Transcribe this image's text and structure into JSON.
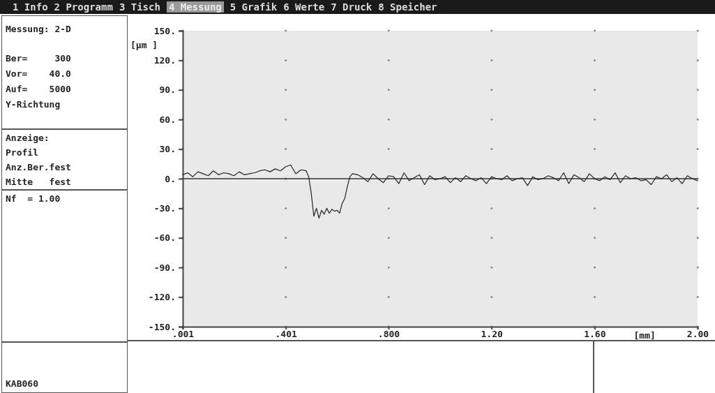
{
  "chart_data": {
    "type": "line",
    "xlabel": "[mm]",
    "ylabel": "[µm ]",
    "series": [
      {
        "color": "#222222",
        "x": [
          0.001,
          0.02,
          0.04,
          0.06,
          0.08,
          0.1,
          0.12,
          0.14,
          0.16,
          0.18,
          0.2,
          0.22,
          0.24,
          0.26,
          0.28,
          0.3,
          0.32,
          0.34,
          0.36,
          0.38,
          0.4,
          0.42,
          0.44,
          0.46,
          0.48,
          0.49,
          0.5,
          0.51,
          0.52,
          0.53,
          0.54,
          0.55,
          0.56,
          0.57,
          0.58,
          0.59,
          0.6,
          0.61,
          0.62,
          0.63,
          0.64,
          0.65,
          0.66,
          0.68,
          0.7,
          0.72,
          0.74,
          0.76,
          0.78,
          0.8,
          0.82,
          0.84,
          0.86,
          0.88,
          0.9,
          0.92,
          0.94,
          0.96,
          0.98,
          1.0,
          1.02,
          1.04,
          1.06,
          1.08,
          1.1,
          1.12,
          1.14,
          1.16,
          1.18,
          1.2,
          1.22,
          1.24,
          1.26,
          1.28,
          1.3,
          1.32,
          1.34,
          1.36,
          1.38,
          1.4,
          1.42,
          1.44,
          1.46,
          1.48,
          1.5,
          1.52,
          1.54,
          1.56,
          1.58,
          1.6,
          1.62,
          1.64,
          1.66,
          1.68,
          1.7,
          1.72,
          1.74,
          1.76,
          1.78,
          1.8,
          1.82,
          1.84,
          1.86,
          1.88,
          1.9,
          1.92,
          1.94,
          1.96,
          1.98,
          2.0
        ],
        "values": [
          4,
          6,
          2,
          7,
          5,
          3,
          8,
          4,
          6,
          5,
          3,
          7,
          4,
          5,
          6,
          8,
          9,
          7,
          10,
          8,
          12,
          14,
          5,
          9,
          8,
          2,
          -15,
          -38,
          -30,
          -40,
          -32,
          -36,
          -30,
          -35,
          -31,
          -33,
          -32,
          -35,
          -25,
          -20,
          -8,
          2,
          5,
          4,
          1,
          -3,
          5,
          0,
          -4,
          3,
          2,
          -5,
          6,
          -2,
          1,
          4,
          -6,
          3,
          -1,
          0,
          2,
          -4,
          1,
          -3,
          3,
          0,
          -2,
          1,
          -5,
          2,
          0,
          -1,
          3,
          -2,
          0,
          1,
          -7,
          2,
          -1,
          0,
          3,
          1,
          -2,
          6,
          -5,
          4,
          1,
          -3,
          5,
          0,
          -2,
          2,
          -1,
          6,
          -4,
          3,
          0,
          1,
          -2,
          -1,
          -6,
          2,
          0,
          4,
          -3,
          1,
          -5,
          3,
          0,
          -2
        ]
      }
    ],
    "xlim": [
      0.001,
      2.0
    ],
    "xticks": [
      {
        "value": 0.001,
        "label": ".001"
      },
      {
        "value": 0.401,
        "label": ".401"
      },
      {
        "value": 0.8,
        "label": ".800"
      },
      {
        "value": 1.2,
        "label": "1.20"
      },
      {
        "value": 1.6,
        "label": "1.60"
      },
      {
        "value": 2.0,
        "label": "2.00"
      }
    ],
    "ylim": [
      -150,
      150
    ],
    "yticks": [
      {
        "value": -150,
        "label": "-150."
      },
      {
        "value": -120,
        "label": "-120."
      },
      {
        "value": -90,
        "label": "-90."
      },
      {
        "value": -60,
        "label": "-60."
      },
      {
        "value": -30,
        "label": "-30."
      },
      {
        "value": 0,
        "label": "0."
      },
      {
        "value": 30,
        "label": "30."
      },
      {
        "value": 60,
        "label": "60."
      },
      {
        "value": 90,
        "label": "90."
      },
      {
        "value": 120,
        "label": "120."
      },
      {
        "value": 150,
        "label": "150."
      }
    ],
    "grid": true,
    "ref_lines": [
      {
        "axis": "y",
        "value": 0,
        "color": "#333333"
      }
    ],
    "annotations": [
      "1 Info",
      "2 Programm",
      "3 Tisch",
      "4 Messung",
      "5 Grafik",
      "6 Werte",
      "7 Druck",
      "8 Speicher",
      "Messung: 2-D",
      "Ber=     300",
      "Vor=    40.0",
      "Auf=    5000",
      "Y-Richtung",
      "Anzeige:",
      "Profil",
      "Anz.Ber.fest",
      "Mitte   fest",
      "Nf  = 1.00",
      "KAB060"
    ]
  }
}
